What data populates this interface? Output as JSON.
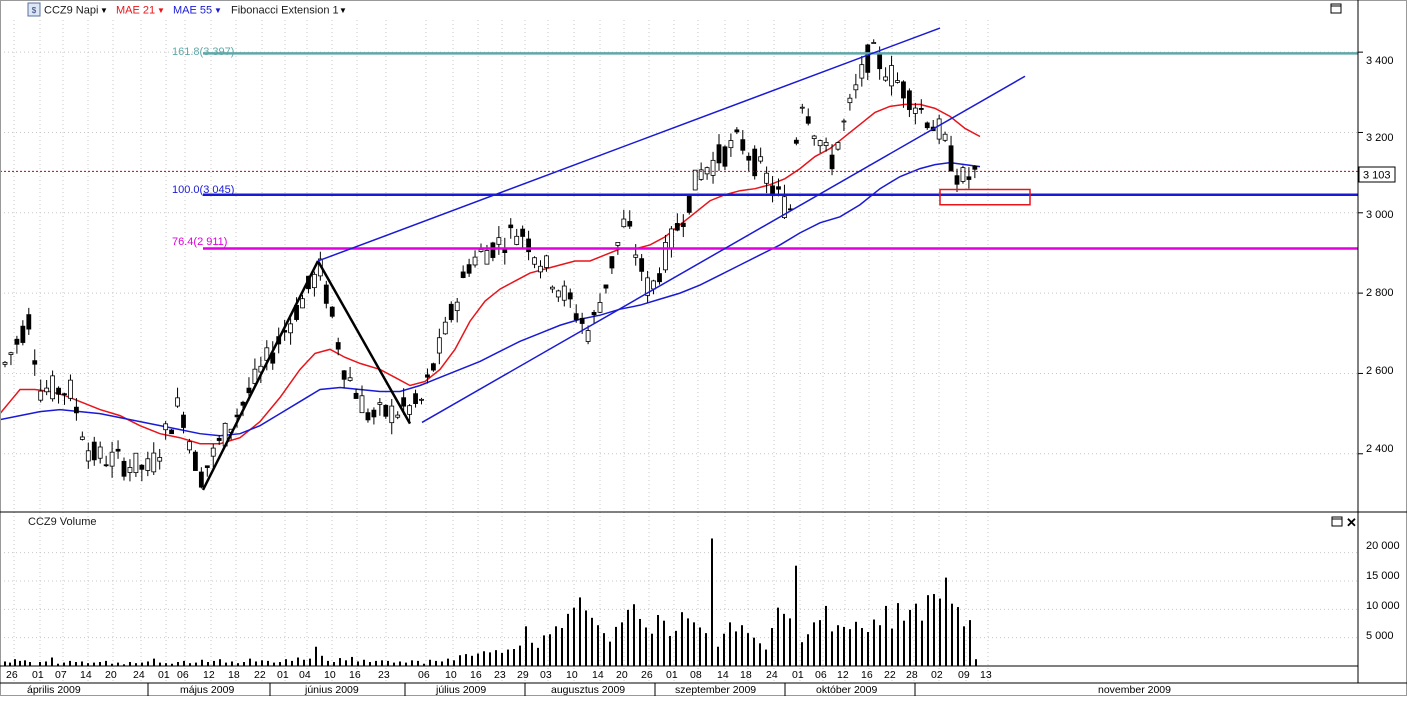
{
  "toolbar": {
    "symbol_icon": "chart-symbol-icon",
    "symbol_label": "CCZ9 Napi",
    "mae21_label": "MAE 21",
    "mae55_label": "MAE 55",
    "fib_label": "Fibonacci Extension 1",
    "maximize_icon": "maximize-icon"
  },
  "price_panel": {
    "y_ticks": [
      "3 400",
      "3 200",
      "3 000",
      "2 800",
      "2 600",
      "2 400"
    ],
    "last_price_label": "3 103",
    "fib_levels": [
      {
        "label": "161.8(3 397)",
        "value": 3397,
        "color": "#5fa8a8"
      },
      {
        "label": "100.0(3 045)",
        "value": 3045,
        "color": "#1a1ad6"
      },
      {
        "label": "76.4(2 911)",
        "value": 2911,
        "color": "#e000e0"
      }
    ]
  },
  "volume_panel": {
    "title": "CCZ9 Volume",
    "y_ticks": [
      "20 000",
      "15 000",
      "10 000",
      "5 000"
    ],
    "maximize_icon": "maximize-icon",
    "close_icon": "close-icon"
  },
  "x_axis": {
    "day_ticks": [
      "26",
      "01",
      "07",
      "14",
      "20",
      "24",
      "01",
      "06",
      "12",
      "18",
      "22",
      "01",
      "04",
      "10",
      "16",
      "23",
      "06",
      "10",
      "16",
      "23",
      "29",
      "03",
      "10",
      "14",
      "20",
      "26",
      "01",
      "08",
      "14",
      "18",
      "24",
      "01",
      "06",
      "12",
      "16",
      "22",
      "28",
      "02",
      "09",
      "13"
    ],
    "month_labels": [
      "április 2009",
      "május 2009",
      "június 2009",
      "július 2009",
      "augusztus 2009",
      "szeptember 2009",
      "október 2009",
      "november 2009"
    ]
  },
  "colors": {
    "mae21": "#e8141a",
    "mae55": "#1a1ad6",
    "candle": "#000000",
    "trend": "#1a1ad6",
    "last_price": "#cc0000",
    "grid": "#c8c8c8"
  },
  "chart_data": {
    "type": "candlestick",
    "instrument": "CCZ9",
    "ylim": [
      2260,
      3480
    ],
    "volume_ylim": [
      0,
      24000
    ],
    "last_price": 3103,
    "series": [
      {
        "name": "MAE 21",
        "values": [
          [
            0,
            2500
          ],
          [
            10,
            2530
          ],
          [
            20,
            2560
          ],
          [
            35,
            2560
          ],
          [
            50,
            2555
          ],
          [
            65,
            2545
          ],
          [
            80,
            2530
          ],
          [
            100,
            2510
          ],
          [
            120,
            2495
          ],
          [
            140,
            2470
          ],
          [
            160,
            2450
          ],
          [
            180,
            2440
          ],
          [
            200,
            2425
          ],
          [
            220,
            2425
          ],
          [
            240,
            2440
          ],
          [
            260,
            2480
          ],
          [
            280,
            2540
          ],
          [
            300,
            2610
          ],
          [
            315,
            2650
          ],
          [
            330,
            2660
          ],
          [
            345,
            2640
          ],
          [
            360,
            2625
          ],
          [
            380,
            2610
          ],
          [
            395,
            2590
          ],
          [
            410,
            2570
          ],
          [
            425,
            2580
          ],
          [
            440,
            2610
          ],
          [
            455,
            2660
          ],
          [
            470,
            2730
          ],
          [
            485,
            2780
          ],
          [
            500,
            2810
          ],
          [
            515,
            2830
          ],
          [
            530,
            2850
          ],
          [
            545,
            2860
          ],
          [
            560,
            2870
          ],
          [
            575,
            2880
          ],
          [
            590,
            2880
          ],
          [
            605,
            2895
          ],
          [
            620,
            2910
          ],
          [
            635,
            2910
          ],
          [
            650,
            2920
          ],
          [
            665,
            2940
          ],
          [
            680,
            2970
          ],
          [
            695,
            3000
          ],
          [
            710,
            3030
          ],
          [
            725,
            3045
          ],
          [
            740,
            3055
          ],
          [
            755,
            3060
          ],
          [
            770,
            3070
          ],
          [
            785,
            3085
          ],
          [
            800,
            3110
          ],
          [
            815,
            3140
          ],
          [
            830,
            3160
          ],
          [
            845,
            3190
          ],
          [
            860,
            3220
          ],
          [
            875,
            3250
          ],
          [
            890,
            3265
          ],
          [
            905,
            3270
          ],
          [
            920,
            3270
          ],
          [
            935,
            3260
          ],
          [
            950,
            3240
          ],
          [
            965,
            3210
          ],
          [
            980,
            3190
          ]
        ]
      },
      {
        "name": "MAE 55",
        "values": [
          [
            0,
            2485
          ],
          [
            20,
            2495
          ],
          [
            40,
            2505
          ],
          [
            60,
            2510
          ],
          [
            80,
            2505
          ],
          [
            100,
            2500
          ],
          [
            120,
            2490
          ],
          [
            140,
            2480
          ],
          [
            160,
            2470
          ],
          [
            180,
            2460
          ],
          [
            200,
            2450
          ],
          [
            220,
            2445
          ],
          [
            240,
            2450
          ],
          [
            260,
            2470
          ],
          [
            280,
            2500
          ],
          [
            300,
            2530
          ],
          [
            320,
            2560
          ],
          [
            340,
            2565
          ],
          [
            360,
            2560
          ],
          [
            380,
            2555
          ],
          [
            400,
            2555
          ],
          [
            420,
            2570
          ],
          [
            440,
            2590
          ],
          [
            460,
            2610
          ],
          [
            480,
            2630
          ],
          [
            500,
            2655
          ],
          [
            520,
            2680
          ],
          [
            540,
            2700
          ],
          [
            560,
            2720
          ],
          [
            580,
            2735
          ],
          [
            600,
            2745
          ],
          [
            620,
            2760
          ],
          [
            640,
            2770
          ],
          [
            660,
            2785
          ],
          [
            680,
            2800
          ],
          [
            700,
            2820
          ],
          [
            720,
            2845
          ],
          [
            740,
            2870
          ],
          [
            760,
            2895
          ],
          [
            780,
            2920
          ],
          [
            800,
            2950
          ],
          [
            820,
            2975
          ],
          [
            840,
            2990
          ],
          [
            860,
            3020
          ],
          [
            880,
            3060
          ],
          [
            900,
            3090
          ],
          [
            920,
            3110
          ],
          [
            935,
            3120
          ],
          [
            950,
            3125
          ],
          [
            965,
            3120
          ],
          [
            980,
            3115
          ]
        ]
      },
      {
        "name": "Volume",
        "values": [
          [
            5,
            800
          ],
          [
            10,
            600
          ],
          [
            15,
            1200
          ],
          [
            20,
            900
          ],
          [
            25,
            1000
          ],
          [
            30,
            700
          ],
          [
            40,
            700
          ],
          [
            46,
            800
          ],
          [
            52,
            1500
          ],
          [
            58,
            400
          ],
          [
            64,
            600
          ],
          [
            70,
            900
          ],
          [
            76,
            700
          ],
          [
            82,
            800
          ],
          [
            88,
            500
          ],
          [
            94,
            600
          ],
          [
            100,
            700
          ],
          [
            106,
            900
          ],
          [
            112,
            400
          ],
          [
            118,
            600
          ],
          [
            124,
            300
          ],
          [
            130,
            700
          ],
          [
            136,
            500
          ],
          [
            142,
            600
          ],
          [
            148,
            800
          ],
          [
            154,
            1300
          ],
          [
            160,
            600
          ],
          [
            166,
            500
          ],
          [
            172,
            400
          ],
          [
            178,
            700
          ],
          [
            184,
            900
          ],
          [
            190,
            500
          ],
          [
            196,
            600
          ],
          [
            202,
            1100
          ],
          [
            208,
            700
          ],
          [
            214,
            900
          ],
          [
            220,
            1200
          ],
          [
            226,
            600
          ],
          [
            232,
            800
          ],
          [
            238,
            500
          ],
          [
            244,
            700
          ],
          [
            250,
            1300
          ],
          [
            256,
            800
          ],
          [
            262,
            1000
          ],
          [
            268,
            900
          ],
          [
            274,
            600
          ],
          [
            280,
            700
          ],
          [
            286,
            1200
          ],
          [
            292,
            900
          ],
          [
            298,
            1500
          ],
          [
            304,
            1100
          ],
          [
            310,
            1300
          ],
          [
            316,
            3400
          ],
          [
            322,
            1800
          ],
          [
            328,
            900
          ],
          [
            334,
            700
          ],
          [
            340,
            1400
          ],
          [
            346,
            1000
          ],
          [
            352,
            1600
          ],
          [
            358,
            800
          ],
          [
            364,
            1100
          ],
          [
            370,
            700
          ],
          [
            376,
            900
          ],
          [
            382,
            1000
          ],
          [
            388,
            900
          ],
          [
            394,
            600
          ],
          [
            400,
            800
          ],
          [
            406,
            600
          ],
          [
            412,
            1000
          ],
          [
            418,
            900
          ],
          [
            424,
            400
          ],
          [
            430,
            1100
          ],
          [
            436,
            900
          ],
          [
            442,
            800
          ],
          [
            448,
            1300
          ],
          [
            454,
            1000
          ],
          [
            460,
            1900
          ],
          [
            466,
            2100
          ],
          [
            472,
            1800
          ],
          [
            478,
            2200
          ],
          [
            484,
            2600
          ],
          [
            490,
            2400
          ],
          [
            496,
            2800
          ],
          [
            502,
            2300
          ],
          [
            508,
            2900
          ],
          [
            514,
            3000
          ],
          [
            520,
            3600
          ],
          [
            526,
            7000
          ],
          [
            532,
            4100
          ],
          [
            538,
            3200
          ],
          [
            544,
            5400
          ],
          [
            550,
            5600
          ],
          [
            556,
            7000
          ],
          [
            562,
            6700
          ],
          [
            568,
            9200
          ],
          [
            574,
            10300
          ],
          [
            580,
            12100
          ],
          [
            586,
            9800
          ],
          [
            592,
            8500
          ],
          [
            598,
            7200
          ],
          [
            604,
            5800
          ],
          [
            610,
            4300
          ],
          [
            616,
            6900
          ],
          [
            622,
            7700
          ],
          [
            628,
            9900
          ],
          [
            634,
            10900
          ],
          [
            640,
            8300
          ],
          [
            646,
            6800
          ],
          [
            652,
            5700
          ],
          [
            658,
            9000
          ],
          [
            664,
            8000
          ],
          [
            670,
            5300
          ],
          [
            676,
            6200
          ],
          [
            682,
            9500
          ],
          [
            688,
            8400
          ],
          [
            694,
            7700
          ],
          [
            700,
            6800
          ],
          [
            706,
            5800
          ],
          [
            712,
            22500
          ],
          [
            718,
            3400
          ],
          [
            724,
            5700
          ],
          [
            730,
            7700
          ],
          [
            736,
            6100
          ],
          [
            742,
            7200
          ],
          [
            748,
            5800
          ],
          [
            754,
            5000
          ],
          [
            760,
            4000
          ],
          [
            766,
            2900
          ],
          [
            772,
            6700
          ],
          [
            778,
            10300
          ],
          [
            784,
            9200
          ],
          [
            790,
            8400
          ],
          [
            796,
            17700
          ],
          [
            802,
            4200
          ],
          [
            808,
            5600
          ],
          [
            814,
            7700
          ],
          [
            820,
            8100
          ],
          [
            826,
            10600
          ],
          [
            832,
            6100
          ],
          [
            838,
            7200
          ],
          [
            844,
            6900
          ],
          [
            850,
            6500
          ],
          [
            856,
            7800
          ],
          [
            862,
            6700
          ],
          [
            868,
            6000
          ],
          [
            874,
            8200
          ],
          [
            880,
            7200
          ],
          [
            886,
            10600
          ],
          [
            892,
            6600
          ],
          [
            898,
            11100
          ],
          [
            904,
            8000
          ],
          [
            910,
            9900
          ],
          [
            916,
            11000
          ],
          [
            922,
            8000
          ],
          [
            928,
            12500
          ],
          [
            934,
            12700
          ],
          [
            940,
            11900
          ],
          [
            946,
            15600
          ],
          [
            952,
            11000
          ],
          [
            958,
            10400
          ],
          [
            964,
            7000
          ],
          [
            970,
            8100
          ],
          [
            976,
            1200
          ]
        ]
      }
    ],
    "trendlines": [
      {
        "points": [
          [
            203,
            2310
          ],
          [
            318,
            2880
          ]
        ],
        "color": "#000000"
      },
      {
        "points": [
          [
            318,
            2880
          ],
          [
            410,
            2475
          ]
        ],
        "color": "#000000"
      },
      {
        "points": [
          [
            318,
            2880
          ],
          [
            940,
            3460
          ]
        ],
        "color": "#1a1ad6"
      },
      {
        "points": [
          [
            422,
            2478
          ],
          [
            1025,
            3340
          ]
        ],
        "color": "#1a1ad6"
      }
    ],
    "highlight_box": {
      "x": [
        940,
        1030
      ],
      "y": [
        3020,
        3058
      ],
      "color": "#e8141a"
    }
  }
}
